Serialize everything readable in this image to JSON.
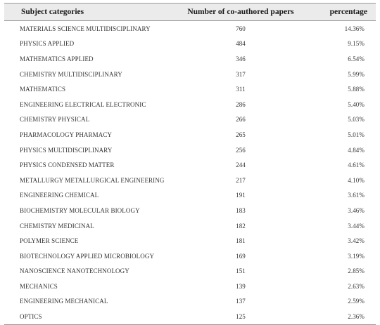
{
  "table": {
    "headers": {
      "category": "Subject categories",
      "count": "Number of co-authored papers",
      "percentage": "percentage"
    },
    "rows": [
      {
        "category": "MATERIALS SCIENCE MULTIDISCIPLINARY",
        "count": "760",
        "percentage": "14.36%"
      },
      {
        "category": "PHYSICS APPLIED",
        "count": "484",
        "percentage": "9.15%"
      },
      {
        "category": "MATHEMATICS APPLIED",
        "count": "346",
        "percentage": "6.54%"
      },
      {
        "category": "CHEMISTRY MULTIDISCIPLINARY",
        "count": "317",
        "percentage": "5.99%"
      },
      {
        "category": "MATHEMATICS",
        "count": "311",
        "percentage": "5.88%"
      },
      {
        "category": "ENGINEERING ELECTRICAL ELECTRONIC",
        "count": "286",
        "percentage": "5.40%"
      },
      {
        "category": "CHEMISTRY PHYSICAL",
        "count": "266",
        "percentage": "5.03%"
      },
      {
        "category": "PHARMACOLOGY PHARMACY",
        "count": "265",
        "percentage": "5.01%"
      },
      {
        "category": "PHYSICS MULTIDISCIPLINARY",
        "count": "256",
        "percentage": "4.84%"
      },
      {
        "category": "PHYSICS CONDENSED MATTER",
        "count": "244",
        "percentage": "4.61%"
      },
      {
        "category": "METALLURGY METALLURGICAL ENGINEERING",
        "count": "217",
        "percentage": "4.10%"
      },
      {
        "category": "ENGINEERING CHEMICAL",
        "count": "191",
        "percentage": "3.61%"
      },
      {
        "category": "BIOCHEMISTRY MOLECULAR BIOLOGY",
        "count": "183",
        "percentage": "3.46%"
      },
      {
        "category": "CHEMISTRY MEDICINAL",
        "count": "182",
        "percentage": "3.44%"
      },
      {
        "category": "POLYMER SCIENCE",
        "count": "181",
        "percentage": "3.42%"
      },
      {
        "category": "BIOTECHNOLOGY APPLIED MICROBIOLOGY",
        "count": "169",
        "percentage": "3.19%"
      },
      {
        "category": "NANOSCIENCE NANOTECHNOLOGY",
        "count": "151",
        "percentage": "2.85%"
      },
      {
        "category": "MECHANICS",
        "count": "139",
        "percentage": "2.63%"
      },
      {
        "category": "ENGINEERING MECHANICAL",
        "count": "137",
        "percentage": "2.59%"
      },
      {
        "category": "OPTICS",
        "count": "125",
        "percentage": "2.36%"
      }
    ]
  }
}
